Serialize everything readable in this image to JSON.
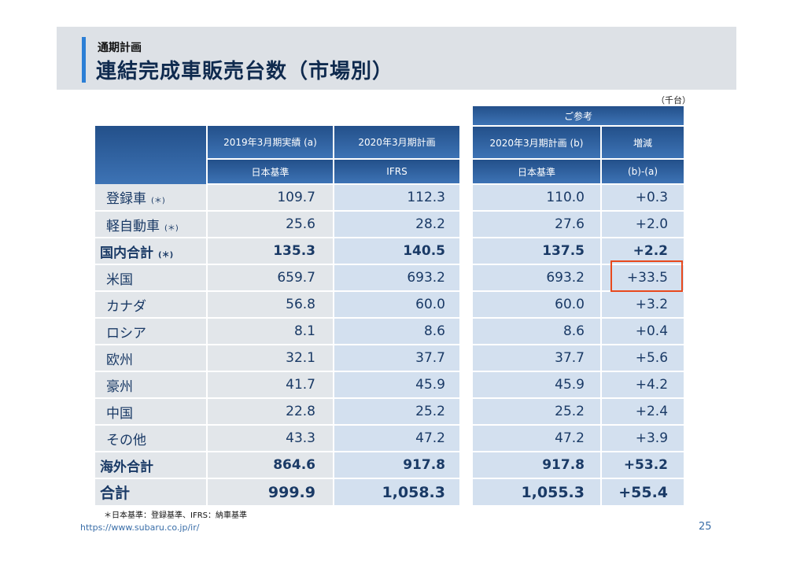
{
  "header": {
    "subtitle": "通期計画",
    "title": "連結完成車販売台数（市場別）"
  },
  "unit": "（千台）",
  "left_table": {
    "col1_header": "2019年3月期実績 (a)",
    "col2_header": "2020年3月期計画",
    "col1_sub": "日本基準",
    "col2_sub": "IFRS"
  },
  "right_table": {
    "group_header": "ご参考",
    "col1_header": "2020年3月期計画 (b)",
    "col2_header": "増減",
    "col1_sub": "日本基準",
    "col2_sub": "(b)-(a)"
  },
  "rows": [
    {
      "label": "登録車",
      "note": "(＊)",
      "a": "109.7",
      "ifrs": "112.3",
      "b": "110.0",
      "diff": "+0.3"
    },
    {
      "label": "軽自動車",
      "note": "(＊)",
      "a": "25.6",
      "ifrs": "28.2",
      "b": "27.6",
      "diff": "+2.0"
    },
    {
      "label": "国内合計",
      "note": "(＊)",
      "a": "135.3",
      "ifrs": "140.5",
      "b": "137.5",
      "diff": "+2.2"
    },
    {
      "label": "米国",
      "note": "",
      "a": "659.7",
      "ifrs": "693.2",
      "b": "693.2",
      "diff": "+33.5"
    },
    {
      "label": "カナダ",
      "note": "",
      "a": "56.8",
      "ifrs": "60.0",
      "b": "60.0",
      "diff": "+3.2"
    },
    {
      "label": "ロシア",
      "note": "",
      "a": "8.1",
      "ifrs": "8.6",
      "b": "8.6",
      "diff": "+0.4"
    },
    {
      "label": "欧州",
      "note": "",
      "a": "32.1",
      "ifrs": "37.7",
      "b": "37.7",
      "diff": "+5.6"
    },
    {
      "label": "豪州",
      "note": "",
      "a": "41.7",
      "ifrs": "45.9",
      "b": "45.9",
      "diff": "+4.2"
    },
    {
      "label": "中国",
      "note": "",
      "a": "22.8",
      "ifrs": "25.2",
      "b": "25.2",
      "diff": "+2.4"
    },
    {
      "label": "その他",
      "note": "",
      "a": "43.3",
      "ifrs": "47.2",
      "b": "47.2",
      "diff": "+3.9"
    },
    {
      "label": "海外合計",
      "note": "",
      "a": "864.6",
      "ifrs": "917.8",
      "b": "917.8",
      "diff": "+53.2"
    },
    {
      "label": "合計",
      "note": "",
      "a": "999.9",
      "ifrs": "1,058.3",
      "b": "1,055.3",
      "diff": "+55.4"
    }
  ],
  "footnote": "＊日本基準：登録基準、IFRS：納車基準",
  "url": "https://www.subaru.co.jp/ir/",
  "page_number": "25"
}
